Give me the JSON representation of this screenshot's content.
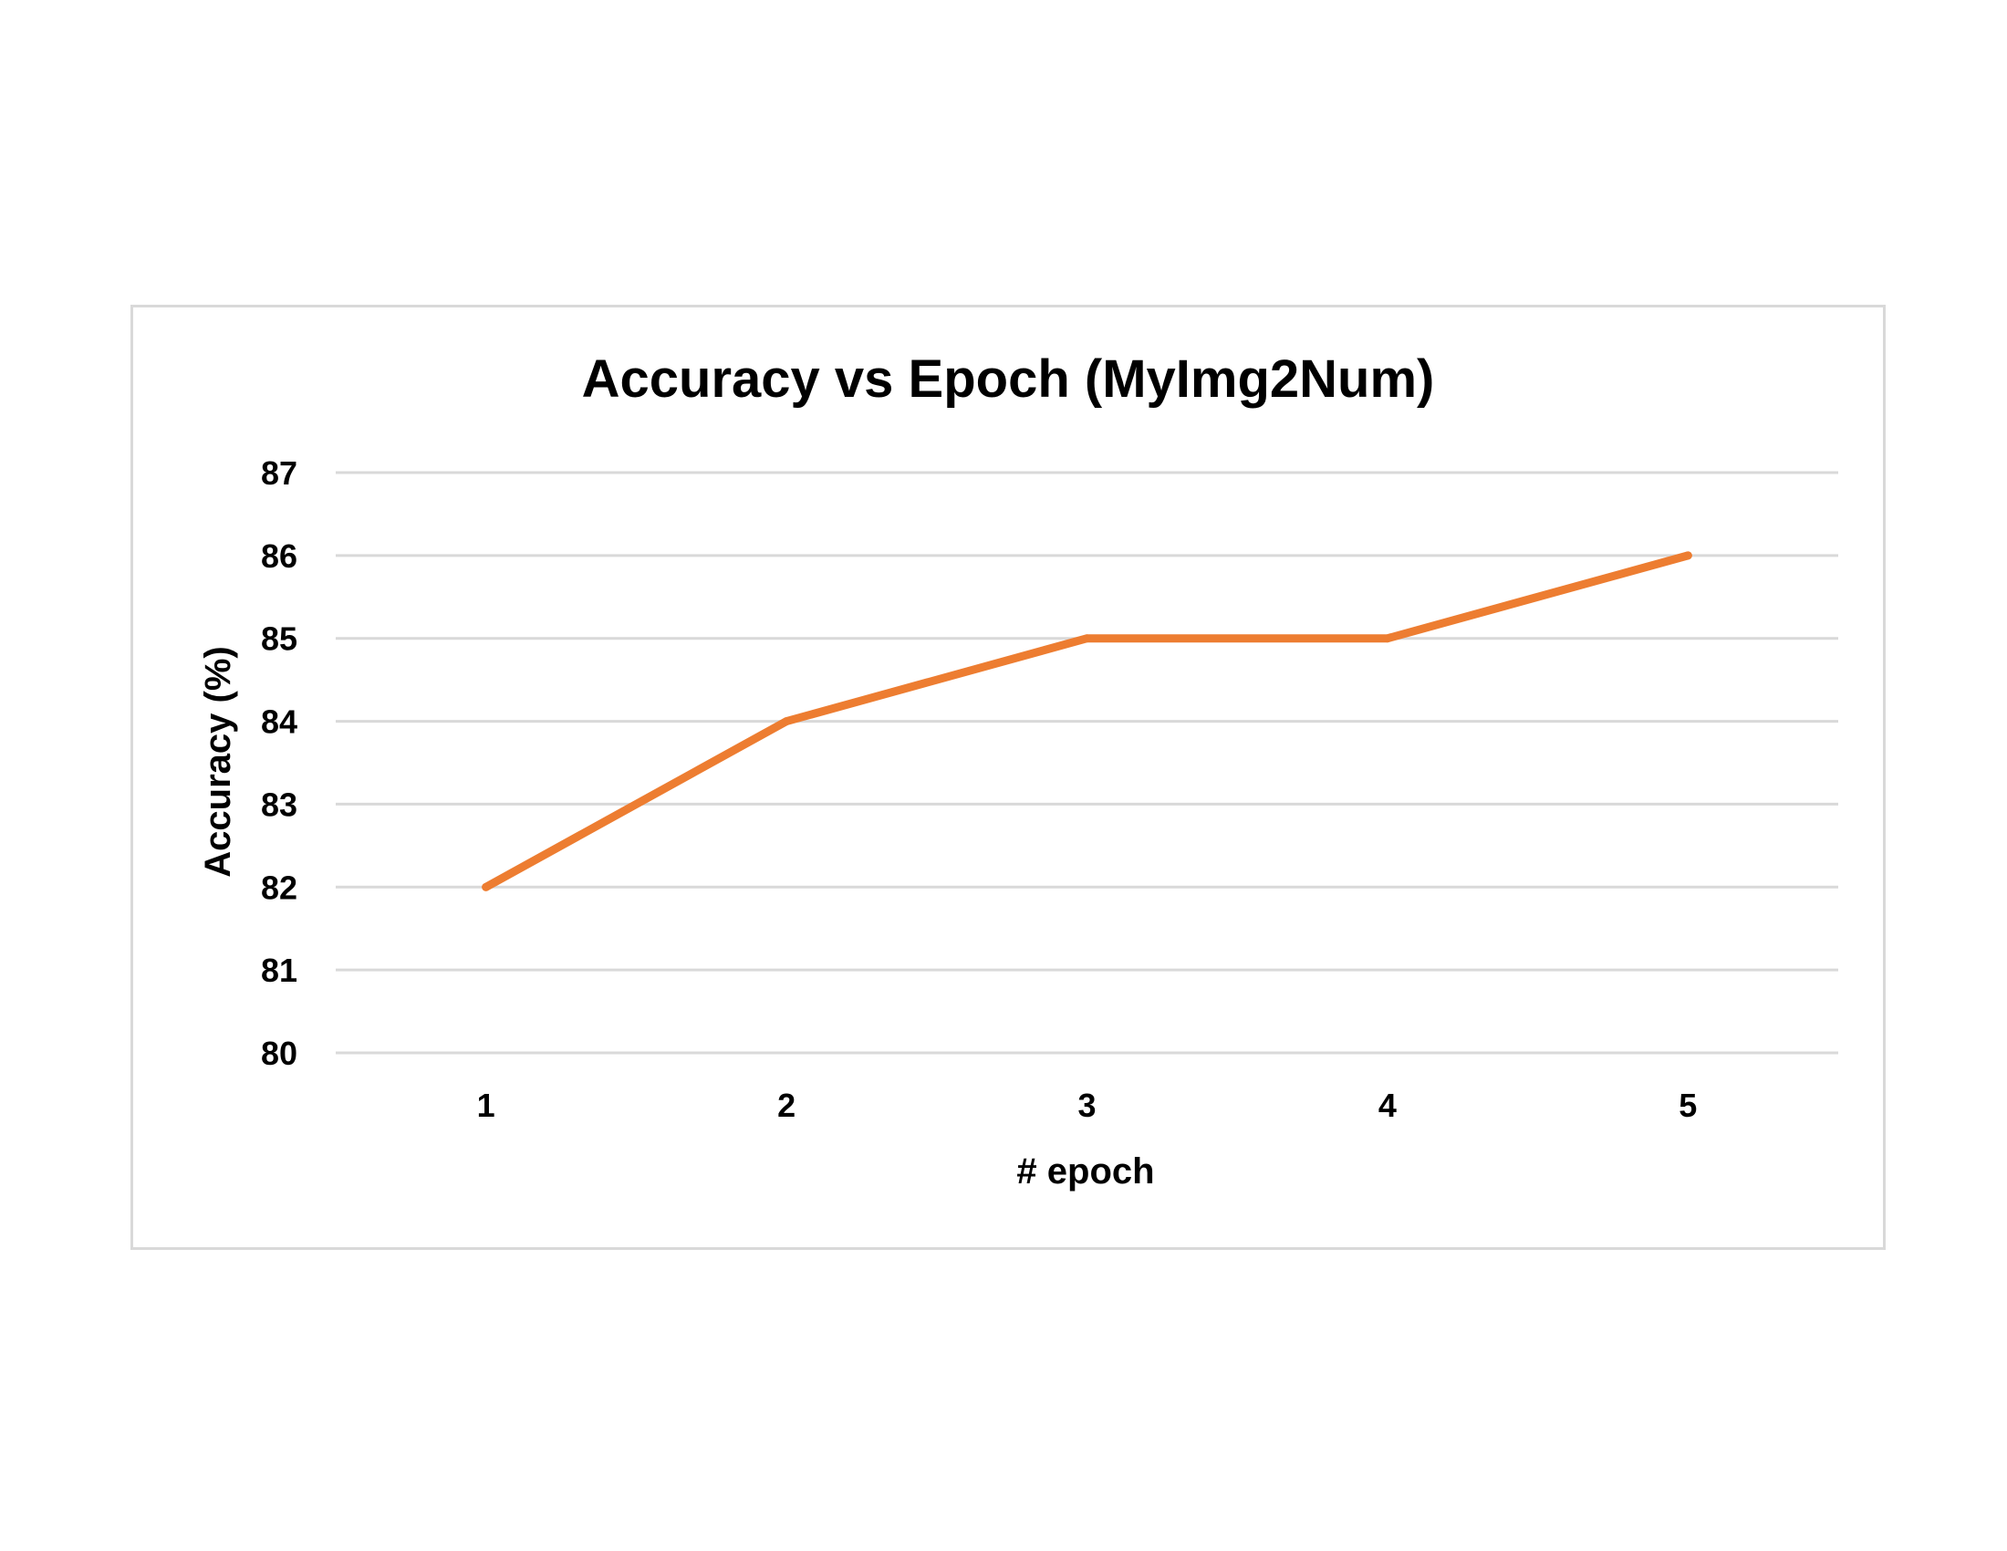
{
  "chart_data": {
    "type": "line",
    "title": "Accuracy vs Epoch (MyImg2Num)",
    "xlabel": "# epoch",
    "ylabel": "Accuracy (%)",
    "categories": [
      "1",
      "2",
      "3",
      "4",
      "5"
    ],
    "series": [
      {
        "values": [
          82,
          84,
          85,
          85,
          86
        ],
        "color": "#ed7d31"
      }
    ],
    "ylim": [
      80,
      87
    ],
    "yticks": [
      "80",
      "81",
      "82",
      "83",
      "84",
      "85",
      "86",
      "87"
    ],
    "grid": true,
    "legend": "none",
    "gridline_color": "#d9d9d9"
  }
}
